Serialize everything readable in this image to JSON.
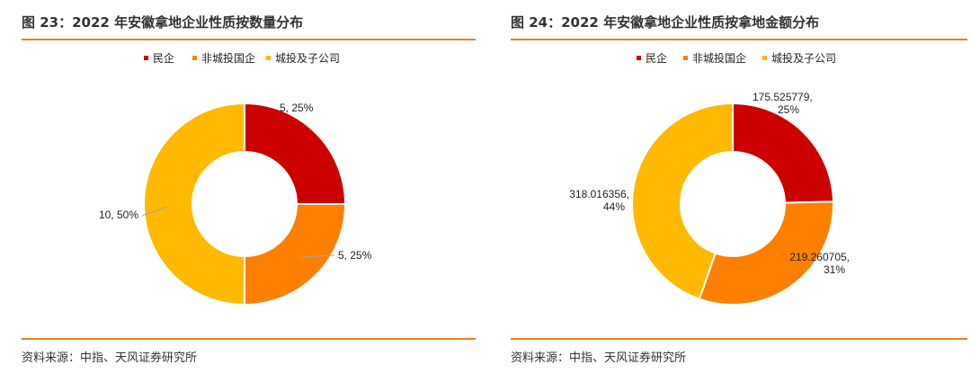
{
  "charts": [
    {
      "figure_title": "图 23：2022 年安徽拿地企业性质按数量分布",
      "source": "资料来源：中指、天风证券研究所",
      "chart_data": {
        "type": "pie",
        "donut": true,
        "categories": [
          "民企",
          "非城投国企",
          "城投及子公司"
        ],
        "values": [
          5,
          5,
          10
        ],
        "percent_labels": [
          "25%",
          "25%",
          "50%"
        ],
        "value_labels": [
          "5",
          "5",
          "10"
        ],
        "colors": [
          "#cc0000",
          "#ff7f00",
          "#ffb900"
        ],
        "legend_position": "top"
      }
    },
    {
      "figure_title": "图 24：2022 年安徽拿地企业性质按拿地金额分布",
      "source": "资料来源：中指、天风证券研究所",
      "chart_data": {
        "type": "pie",
        "donut": true,
        "categories": [
          "民企",
          "非城投国企",
          "城投及子公司"
        ],
        "values": [
          175.525779,
          219.260705,
          318.016356
        ],
        "percent_labels": [
          "25%",
          "31%",
          "44%"
        ],
        "value_labels": [
          "175.525779",
          "219.260705",
          "318.016356"
        ],
        "colors": [
          "#cc0000",
          "#ff7f00",
          "#ffb900"
        ],
        "legend_position": "top"
      }
    }
  ]
}
